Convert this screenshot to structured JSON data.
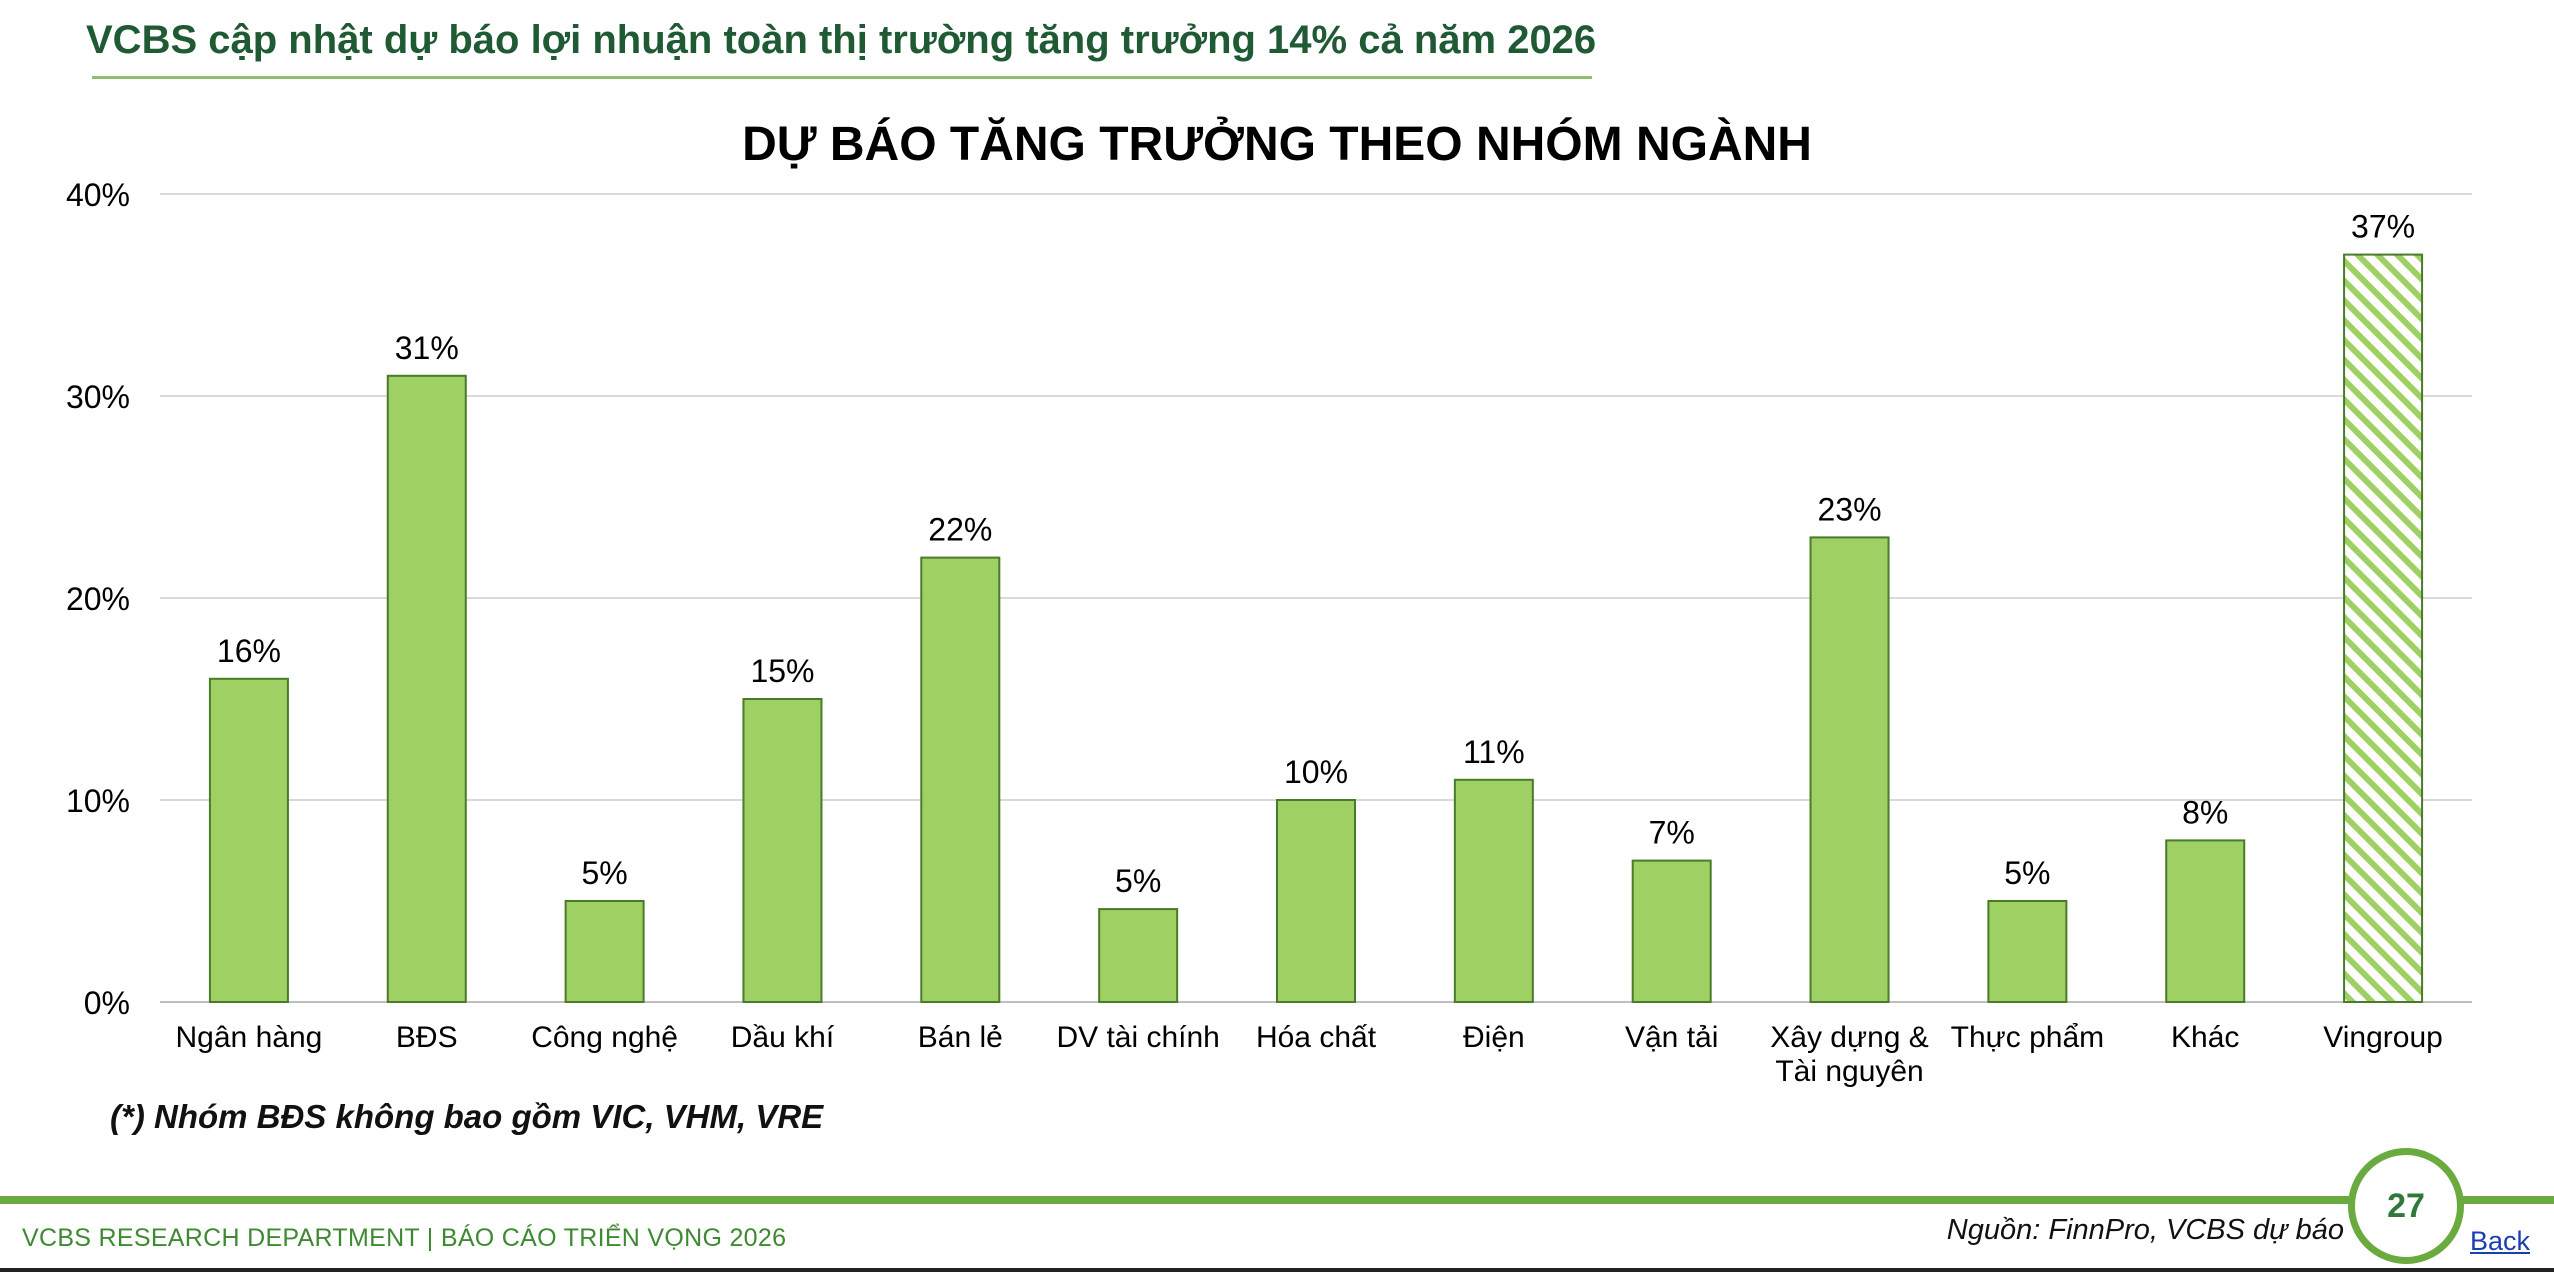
{
  "header": {
    "title": "VCBS cập nhật dự báo lợi nhuận toàn thị trường tăng trưởng 14% cả năm 2026"
  },
  "chart_data": {
    "type": "bar",
    "title": "DỰ BÁO TĂNG TRƯỞNG THEO NHÓM NGÀNH",
    "xlabel": "",
    "ylabel": "",
    "ylim": [
      0,
      40
    ],
    "yticks": [
      0,
      10,
      20,
      30,
      40
    ],
    "ytick_labels": [
      "0%",
      "10%",
      "20%",
      "30%",
      "40%"
    ],
    "categories": [
      [
        "Ngân hàng"
      ],
      [
        "BĐS"
      ],
      [
        "Công nghệ"
      ],
      [
        "Dầu khí"
      ],
      [
        "Bán lẻ"
      ],
      [
        "DV tài chính"
      ],
      [
        "Hóa chất"
      ],
      [
        "Điện"
      ],
      [
        "Vận tải"
      ],
      [
        "Xây dựng &",
        "Tài nguyên"
      ],
      [
        "Thực phẩm"
      ],
      [
        "Khác"
      ],
      [
        "Vingroup"
      ]
    ],
    "values": [
      16,
      31,
      5,
      15,
      22,
      4.6,
      10,
      11,
      7,
      23,
      5,
      8,
      37
    ],
    "data_labels": [
      "16%",
      "31%",
      "5%",
      "15%",
      "22%",
      "5%",
      "10%",
      "11%",
      "7%",
      "23%",
      "5%",
      "8%",
      "37%"
    ],
    "hatched_index": 12,
    "grid": true,
    "legend": "none",
    "colors": {
      "bar": "#9ed063",
      "bar_border": "#4a7a2a",
      "hatch": "#9ed063",
      "grid": "#d9d9d9"
    }
  },
  "footnote": "(*) Nhóm BĐS không bao gồm VIC, VHM, VRE",
  "footer": {
    "left_text": "VCBS RESEARCH DEPARTMENT | BÁO CÁO TRIỂN VỌNG 2026",
    "source": "Nguồn: FinnPro, VCBS dự báo",
    "page_number": "27",
    "back_label": "Back"
  }
}
